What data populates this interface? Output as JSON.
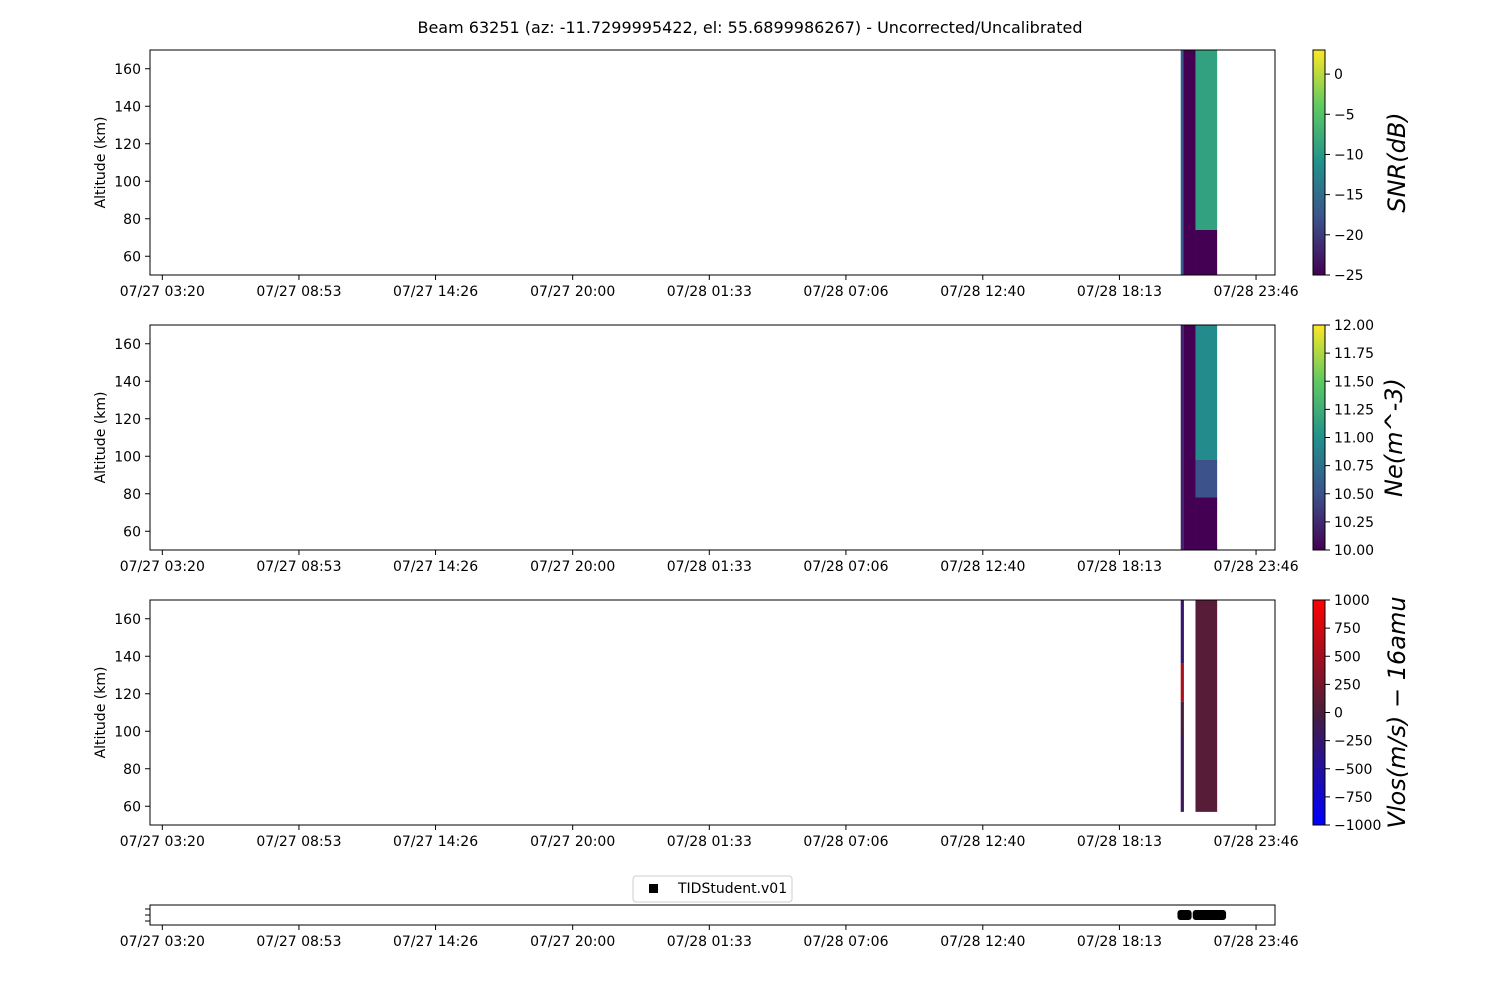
{
  "title": "Beam 63251 (az: -11.7299995422, el: 55.6899986267) - Uncorrected/Uncalibrated",
  "chart_data": [
    {
      "type": "heatmap",
      "panel": "snr",
      "ylabel": "Altitude (km)",
      "ylim": [
        50,
        170
      ],
      "yticks": [
        60,
        80,
        100,
        120,
        140,
        160
      ],
      "xlim_hours": [
        -0.5,
        45.2
      ],
      "xticks": [
        0,
        5.55,
        11.1,
        16.67,
        22.22,
        27.77,
        33.33,
        38.88,
        44.43
      ],
      "xtick_labels": [
        "07/27 03:20",
        "07/27 08:53",
        "07/27 14:26",
        "07/27 20:00",
        "07/28 01:33",
        "07/28 07:06",
        "07/28 12:40",
        "07/28 18:13",
        "07/28 23:46"
      ],
      "colorbar": {
        "label": "SNR(dB)",
        "cmap": "viridis",
        "range": [
          -25,
          3
        ],
        "ticks": [
          0,
          -5,
          -10,
          -15,
          -20,
          -25
        ],
        "tick_labels": [
          "0",
          "−5",
          "−10",
          "−15",
          "−20",
          "−25"
        ]
      },
      "data_blocks": [
        {
          "t_start": 41.37,
          "t_end": 41.47,
          "alt_start": 50,
          "alt_end": 170,
          "value": -17
        },
        {
          "t_start": 41.47,
          "t_end": 41.97,
          "alt_start": 50,
          "alt_end": 170,
          "value": -25
        },
        {
          "t_start": 41.97,
          "t_end": 42.85,
          "alt_start": 50,
          "alt_end": 74,
          "value": -25
        },
        {
          "t_start": 41.97,
          "t_end": 42.85,
          "alt_start": 74,
          "alt_end": 170,
          "value": -9
        }
      ]
    },
    {
      "type": "heatmap",
      "panel": "ne",
      "ylabel": "Altitude (km)",
      "ylim": [
        50,
        170
      ],
      "yticks": [
        60,
        80,
        100,
        120,
        140,
        160
      ],
      "xlim_hours": [
        -0.5,
        45.2
      ],
      "xticks": [
        0,
        5.55,
        11.1,
        16.67,
        22.22,
        27.77,
        33.33,
        38.88,
        44.43
      ],
      "xtick_labels": [
        "07/27 03:20",
        "07/27 08:53",
        "07/27 14:26",
        "07/27 20:00",
        "07/28 01:33",
        "07/28 07:06",
        "07/28 12:40",
        "07/28 18:13",
        "07/28 23:46"
      ],
      "colorbar": {
        "label": "Ne(m^-3)",
        "cmap": "viridis",
        "range": [
          10,
          12
        ],
        "ticks": [
          12,
          11.75,
          11.5,
          11.25,
          11,
          10.75,
          10.5,
          10.25,
          10
        ],
        "tick_labels": [
          "12.00",
          "11.75",
          "11.50",
          "11.25",
          "11.00",
          "10.75",
          "10.50",
          "10.25",
          "10.00"
        ]
      },
      "data_blocks": [
        {
          "t_start": 41.37,
          "t_end": 41.47,
          "alt_start": 50,
          "alt_end": 170,
          "value": 10.2
        },
        {
          "t_start": 41.47,
          "t_end": 41.97,
          "alt_start": 50,
          "alt_end": 170,
          "value": 10.0
        },
        {
          "t_start": 41.97,
          "t_end": 42.85,
          "alt_start": 50,
          "alt_end": 78,
          "value": 10.0
        },
        {
          "t_start": 41.97,
          "t_end": 42.85,
          "alt_start": 78,
          "alt_end": 98,
          "value": 10.5
        },
        {
          "t_start": 41.97,
          "t_end": 42.85,
          "alt_start": 98,
          "alt_end": 170,
          "value": 10.95
        }
      ]
    },
    {
      "type": "heatmap",
      "panel": "vlos",
      "ylabel": "Altitude (km)",
      "ylim": [
        50,
        170
      ],
      "yticks": [
        60,
        80,
        100,
        120,
        140,
        160
      ],
      "xlim_hours": [
        -0.5,
        45.2
      ],
      "xticks": [
        0,
        5.55,
        11.1,
        16.67,
        22.22,
        27.77,
        33.33,
        38.88,
        44.43
      ],
      "xtick_labels": [
        "07/27 03:20",
        "07/27 08:53",
        "07/27 14:26",
        "07/27 20:00",
        "07/28 01:33",
        "07/28 07:06",
        "07/28 12:40",
        "07/28 18:13",
        "07/28 23:46"
      ],
      "colorbar": {
        "label": "Vlos(m/s) − 16amu",
        "cmap": "bwr",
        "range": [
          -1000,
          1000
        ],
        "ticks": [
          1000,
          750,
          500,
          250,
          0,
          -250,
          -500,
          -750,
          -1000
        ],
        "tick_labels": [
          "1000",
          "750",
          "500",
          "250",
          "0",
          "−250",
          "−500",
          "−750",
          "−1000"
        ]
      },
      "data_blocks": [
        {
          "t_start": 41.37,
          "t_end": 41.5,
          "alt_start": 57,
          "alt_end": 98,
          "value": -150
        },
        {
          "t_start": 41.37,
          "t_end": 41.5,
          "alt_start": 98,
          "alt_end": 116,
          "value": 0
        },
        {
          "t_start": 41.37,
          "t_end": 41.5,
          "alt_start": 116,
          "alt_end": 136,
          "value": 550
        },
        {
          "t_start": 41.37,
          "t_end": 41.5,
          "alt_start": 136,
          "alt_end": 170,
          "value": -250
        },
        {
          "t_start": 41.97,
          "t_end": 42.85,
          "alt_start": 57,
          "alt_end": 170,
          "value": 80
        }
      ]
    },
    {
      "type": "scatter",
      "panel": "events",
      "legend": "TIDStudent.v01",
      "legend_position": "top-center",
      "xlim_hours": [
        -0.5,
        45.2
      ],
      "xticks": [
        0,
        5.55,
        11.1,
        16.67,
        22.22,
        27.77,
        33.33,
        38.88,
        44.43
      ],
      "xtick_labels": [
        "07/27 03:20",
        "07/27 08:53",
        "07/27 14:26",
        "07/27 20:00",
        "07/28 01:33",
        "07/28 07:06",
        "07/28 12:40",
        "07/28 18:13",
        "07/28 23:46"
      ],
      "segments": [
        {
          "t_start": 41.4,
          "t_end": 41.65
        },
        {
          "t_start": 42.02,
          "t_end": 43.05
        }
      ]
    }
  ]
}
